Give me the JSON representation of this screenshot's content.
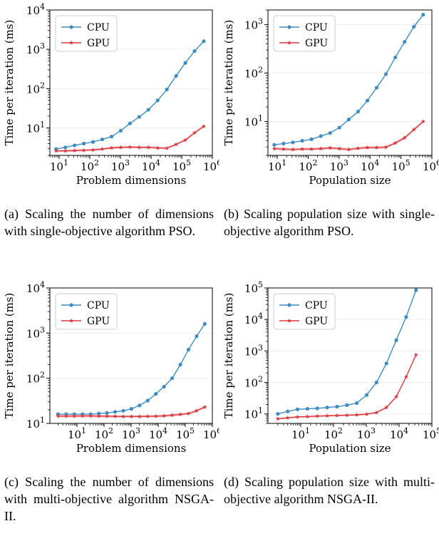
{
  "colors": {
    "cpu": "#3f8cc2",
    "gpu": "#d9393f",
    "grid": "#eeeeee",
    "band_gpu": "#f2b6b8"
  },
  "figures": [
    {
      "label": "(a)",
      "caption": "(a) Scaling the number of dimensions with single-objective algorithm PSO."
    },
    {
      "label": "(b)",
      "caption": "(b) Scaling population size with single-objective algorithm PSO."
    },
    {
      "label": "(c)",
      "caption": "(c) Scaling the number of dimensions with multi-objective algorithm NSGA-II."
    },
    {
      "label": "(d)",
      "caption": "(d) Scaling population size with multi-objective algorithm NSGA-II."
    }
  ],
  "chart_data": [
    {
      "type": "line",
      "xscale": "log",
      "yscale": "log",
      "xlabel": "Problem dimensions",
      "ylabel": "Time per iteration (ms)",
      "xlim": [
        5,
        1000000
      ],
      "ylim": [
        2,
        10000
      ],
      "xticks": [
        10,
        100,
        1000,
        10000,
        100000,
        1000000
      ],
      "xtick_labels": [
        "10^1",
        "10^2",
        "10^3",
        "10^4",
        "10^5",
        "10^6"
      ],
      "yticks": [
        10,
        100,
        1000,
        10000
      ],
      "ytick_labels": [
        "10^1",
        "10^2",
        "10^3",
        "10^4"
      ],
      "legend": "top-left",
      "grid": true,
      "series": [
        {
          "name": "CPU",
          "marker": "dot",
          "x": [
            8,
            16,
            32,
            64,
            128,
            256,
            512,
            1024,
            2048,
            4096,
            8192,
            16384,
            32768,
            65536,
            131072,
            262144,
            524288
          ],
          "y": [
            2.9,
            3.2,
            3.6,
            4.0,
            4.4,
            5.1,
            6.0,
            8.5,
            13,
            19,
            29,
            50,
            95,
            210,
            450,
            900,
            1600
          ]
        },
        {
          "name": "GPU",
          "marker": "star",
          "x": [
            8,
            16,
            32,
            64,
            128,
            256,
            512,
            1024,
            2048,
            4096,
            8192,
            16384,
            32768,
            65536,
            131072,
            262144,
            524288
          ],
          "y": [
            2.6,
            2.6,
            2.65,
            2.7,
            2.75,
            2.9,
            3.1,
            3.2,
            3.25,
            3.2,
            3.2,
            3.1,
            3.05,
            3.8,
            4.9,
            7.5,
            11
          ]
        }
      ]
    },
    {
      "type": "line",
      "xscale": "log",
      "yscale": "log",
      "xlabel": "Population size",
      "ylabel": "Time per iteration (ms)",
      "xlim": [
        5,
        1000000
      ],
      "ylim": [
        2,
        2000
      ],
      "xticks": [
        10,
        100,
        1000,
        10000,
        100000,
        1000000
      ],
      "xtick_labels": [
        "10^1",
        "10^2",
        "10^3",
        "10^4",
        "10^5",
        "10^6"
      ],
      "yticks": [
        10,
        100,
        1000
      ],
      "ytick_labels": [
        "10^1",
        "10^2",
        "10^3"
      ],
      "legend": "top-left",
      "grid": true,
      "series": [
        {
          "name": "CPU",
          "marker": "dot",
          "x": [
            8,
            16,
            32,
            64,
            128,
            256,
            512,
            1024,
            2048,
            4096,
            8192,
            16384,
            32768,
            65536,
            131072,
            262144,
            524288
          ],
          "y": [
            3.3,
            3.5,
            3.7,
            4.0,
            4.3,
            5.0,
            5.8,
            7.5,
            11,
            16,
            27,
            50,
            95,
            210,
            440,
            900,
            1600
          ]
        },
        {
          "name": "GPU",
          "marker": "star",
          "x": [
            8,
            16,
            32,
            64,
            128,
            256,
            512,
            1024,
            2048,
            4096,
            8192,
            16384,
            32768,
            65536,
            131072,
            262144,
            524288
          ],
          "y": [
            2.75,
            2.7,
            2.65,
            2.7,
            2.7,
            2.75,
            2.85,
            2.75,
            2.65,
            2.8,
            2.9,
            2.9,
            2.95,
            3.6,
            4.6,
            6.8,
            10
          ]
        }
      ]
    },
    {
      "type": "line",
      "xscale": "log",
      "yscale": "log",
      "xlabel": "Problem dimensions",
      "ylabel": "Time per iteration (ms)",
      "xlim": [
        1,
        1000000
      ],
      "ylim": [
        10,
        10000
      ],
      "xticks": [
        10,
        100,
        1000,
        10000,
        100000,
        1000000
      ],
      "xtick_labels": [
        "10^1",
        "10^2",
        "10^3",
        "10^4",
        "10^5",
        "10^6"
      ],
      "yticks": [
        10,
        100,
        1000,
        10000
      ],
      "ytick_labels": [
        "10^1",
        "10^2",
        "10^3",
        "10^4"
      ],
      "legend": "top-left",
      "grid": true,
      "series": [
        {
          "name": "CPU",
          "marker": "dot",
          "x": [
            2,
            4,
            8,
            16,
            32,
            64,
            128,
            256,
            512,
            1024,
            2048,
            4096,
            8192,
            16384,
            32768,
            65536,
            131072,
            262144,
            524288
          ],
          "y": [
            16,
            16,
            16,
            16,
            16,
            16.5,
            17,
            18,
            19,
            21,
            25,
            32,
            45,
            65,
            100,
            200,
            430,
            850,
            1600
          ]
        },
        {
          "name": "GPU",
          "marker": "star",
          "x": [
            2,
            4,
            8,
            16,
            32,
            64,
            128,
            256,
            512,
            1024,
            2048,
            4096,
            8192,
            16384,
            32768,
            65536,
            131072,
            262144,
            524288
          ],
          "y": [
            14.5,
            14.5,
            14.5,
            14.6,
            14.6,
            14.5,
            14.4,
            14.3,
            14.2,
            14.2,
            14.2,
            14.3,
            14.4,
            14.7,
            15.2,
            15.8,
            16.5,
            19,
            23
          ]
        }
      ]
    },
    {
      "type": "line",
      "xscale": "log",
      "yscale": "log",
      "xlabel": "Population size",
      "ylabel": "Time per iteration (ms)",
      "xlim": [
        1,
        100000
      ],
      "ylim": [
        5,
        100000
      ],
      "xticks": [
        10,
        100,
        1000,
        10000,
        100000
      ],
      "xtick_labels": [
        "10^1",
        "10^2",
        "10^3",
        "10^4",
        "10^5"
      ],
      "yticks": [
        10,
        100,
        1000,
        10000,
        100000
      ],
      "ytick_labels": [
        "10^1",
        "10^2",
        "10^3",
        "10^4",
        "10^5"
      ],
      "legend": "top-left",
      "grid": true,
      "series": [
        {
          "name": "CPU",
          "marker": "dot",
          "x": [
            2,
            4,
            8,
            16,
            32,
            64,
            128,
            256,
            512,
            1024,
            2048,
            4096,
            8192,
            16384,
            32768
          ],
          "y": [
            10,
            12,
            14,
            14.5,
            15,
            16,
            17,
            19,
            22,
            40,
            100,
            400,
            2200,
            12000,
            85000
          ]
        },
        {
          "name": "GPU",
          "marker": "star",
          "x": [
            2,
            4,
            8,
            16,
            32,
            64,
            128,
            256,
            512,
            1024,
            2048,
            4096,
            8192,
            16384,
            32768
          ],
          "y": [
            7,
            7.5,
            8,
            8.2,
            8.5,
            8.7,
            8.9,
            9.1,
            9.3,
            9.8,
            11,
            16,
            35,
            150,
            750
          ]
        }
      ]
    }
  ]
}
